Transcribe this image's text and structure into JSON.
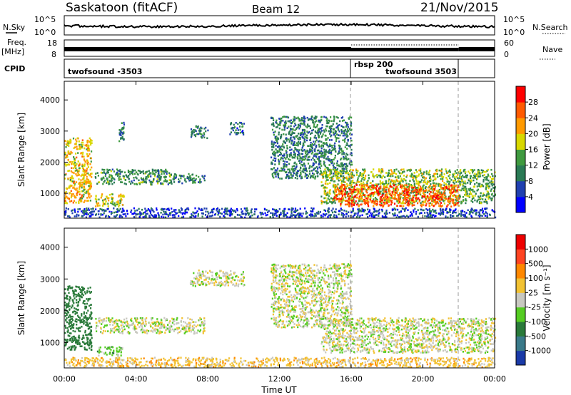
{
  "header": {
    "station": "Saskatoon (fitACF)",
    "beam": "Beam 12",
    "date": "21/Nov/2015"
  },
  "noise_panel": {
    "left_label": "N.Sky",
    "left_ticks": [
      "10^5",
      "10^0"
    ],
    "right_label": "N.Search",
    "right_ticks": [
      "10^5",
      "10^0"
    ]
  },
  "freq_panel": {
    "left_label_1": "Freq.",
    "left_label_2": "[MHz]",
    "left_ticks": [
      "18",
      "8"
    ],
    "right_label": "Nave",
    "right_ticks": [
      "60",
      "0"
    ]
  },
  "cpid_panel": {
    "label": "CPID",
    "modes": [
      "twofsound  -3503",
      "rbsp 200",
      "twofsound 3503"
    ]
  },
  "axes": {
    "ylabel": "Slant Range [km]",
    "yticks": [
      "1000",
      "2000",
      "3000",
      "4000"
    ],
    "xticks": [
      "00:00",
      "04:00",
      "08:00",
      "12:00",
      "16:00",
      "20:00",
      "00:00"
    ],
    "xlabel": "Time UT"
  },
  "power_colorbar": {
    "label": "Power [dB]",
    "ticks": [
      "4",
      "8",
      "12",
      "16",
      "20",
      "24",
      "28"
    ],
    "colors": [
      "#0000ff",
      "#2040b0",
      "#2a7a55",
      "#3f9a3f",
      "#d8d800",
      "#ff9a00",
      "#ff5a00",
      "#ff0000"
    ]
  },
  "velocity_colorbar": {
    "label": "Velocity [m s⁻¹]",
    "ticks": [
      "1000",
      "500",
      "100",
      "25",
      "-25",
      "-100",
      "-500",
      "-1000"
    ],
    "colors": [
      "#1a3aa8",
      "#3a7a8a",
      "#2a7a3a",
      "#55cc22",
      "#c8c8c0",
      "#f2c233",
      "#ff8800",
      "#ff4422",
      "#ee0000"
    ]
  },
  "chart_data": [
    {
      "type": "heatmap",
      "title": "Power",
      "xlabel": "Time UT",
      "ylabel": "Slant Range [km]",
      "xlim_hours": [
        0,
        24
      ],
      "ylim_km": [
        200,
        4600
      ],
      "value_range_db": [
        0,
        30
      ],
      "mode_boundaries_hours": [
        16,
        22
      ],
      "echo_regions": [
        {
          "t_start": 0.0,
          "t_end": 1.5,
          "r_min": 700,
          "r_max": 2800,
          "power_db": 20
        },
        {
          "t_start": 1.7,
          "t_end": 3.3,
          "r_min": 600,
          "r_max": 1000,
          "power_db": 18
        },
        {
          "t_start": 1.7,
          "t_end": 6.0,
          "r_min": 1300,
          "r_max": 1800,
          "power_db": 12
        },
        {
          "t_start": 6.0,
          "t_end": 7.8,
          "r_min": 1350,
          "r_max": 1650,
          "power_db": 10
        },
        {
          "t_start": 3.0,
          "t_end": 3.3,
          "r_min": 2700,
          "r_max": 3300,
          "power_db": 10
        },
        {
          "t_start": 7.0,
          "t_end": 8.0,
          "r_min": 2800,
          "r_max": 3200,
          "power_db": 10
        },
        {
          "t_start": 9.2,
          "t_end": 10.0,
          "r_min": 2900,
          "r_max": 3300,
          "power_db": 8
        },
        {
          "t_start": 11.5,
          "t_end": 16.0,
          "r_min": 1500,
          "r_max": 3500,
          "power_db": 10
        },
        {
          "t_start": 14.3,
          "t_end": 22.0,
          "r_min": 700,
          "r_max": 1800,
          "power_db": 16
        },
        {
          "t_start": 15.0,
          "t_end": 22.0,
          "r_min": 600,
          "r_max": 1300,
          "power_db": 26
        },
        {
          "t_start": 22.0,
          "t_end": 24.0,
          "r_min": 700,
          "r_max": 1800,
          "power_db": 14
        },
        {
          "t_start": 0.0,
          "t_end": 24.0,
          "r_min": 250,
          "r_max": 550,
          "power_db": 6
        }
      ]
    },
    {
      "type": "heatmap",
      "title": "Velocity",
      "xlabel": "Time UT",
      "ylabel": "Slant Range [km]",
      "xlim_hours": [
        0,
        24
      ],
      "ylim_km": [
        200,
        4600
      ],
      "value_range_ms": [
        -1000,
        1000
      ],
      "mode_boundaries_hours": [
        16,
        22
      ],
      "echo_regions": [
        {
          "t_start": 0.0,
          "t_end": 1.5,
          "r_min": 800,
          "r_max": 2800,
          "velocity_ms": 200
        },
        {
          "t_start": 1.8,
          "t_end": 3.2,
          "r_min": 600,
          "r_max": 900,
          "velocity_ms": 60
        },
        {
          "t_start": 1.7,
          "t_end": 7.8,
          "r_min": 1300,
          "r_max": 1800,
          "velocity_ms": 0
        },
        {
          "t_start": 7.0,
          "t_end": 10.0,
          "r_min": 2800,
          "r_max": 3300,
          "velocity_ms": 0
        },
        {
          "t_start": 11.5,
          "t_end": 16.0,
          "r_min": 1500,
          "r_max": 3500,
          "velocity_ms": 0
        },
        {
          "t_start": 14.3,
          "t_end": 24.0,
          "r_min": 700,
          "r_max": 1800,
          "velocity_ms": 0
        },
        {
          "t_start": 0.0,
          "t_end": 24.0,
          "r_min": 250,
          "r_max": 550,
          "velocity_ms": -60
        }
      ]
    }
  ]
}
